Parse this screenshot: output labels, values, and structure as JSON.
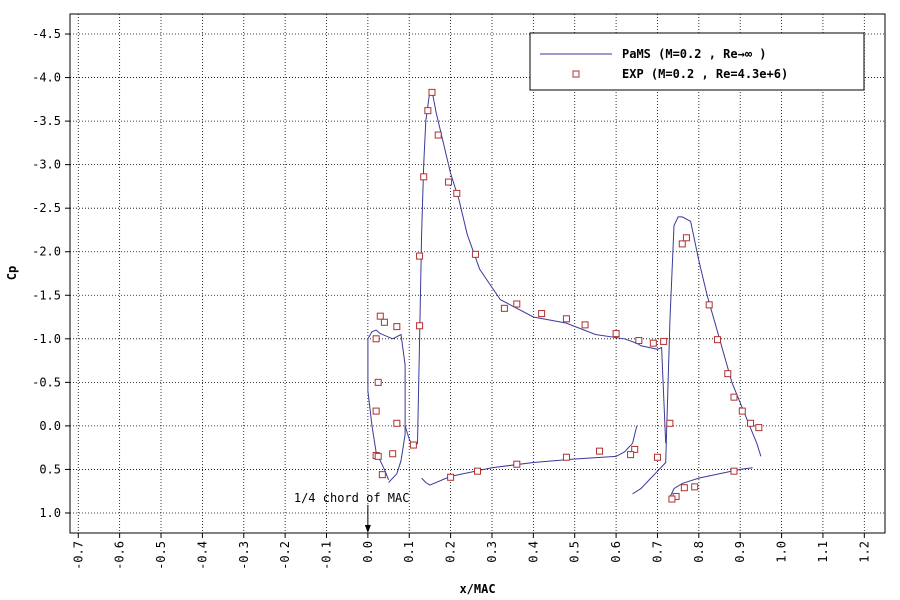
{
  "chart_data": {
    "type": "line",
    "title": "",
    "xlabel": "x/MAC",
    "ylabel": "Cp",
    "xlim": [
      -0.72,
      1.25
    ],
    "ylim": [
      1.23,
      -4.73
    ],
    "y_inverted": true,
    "grid": true,
    "legend_placement": "top-right",
    "x_ticks": [
      "-0.7",
      "-0.6",
      "-0.5",
      "-0.4",
      "-0.3",
      "-0.2",
      "-0.1",
      "0.0",
      "0.1",
      "0.2",
      "0.3",
      "0.4",
      "0.5",
      "0.6",
      "0.7",
      "0.8",
      "0.9",
      "1.0",
      "1.1",
      "1.2"
    ],
    "x_tick_values": [
      -0.7,
      -0.6,
      -0.5,
      -0.4,
      -0.3,
      -0.2,
      -0.1,
      0.0,
      0.1,
      0.2,
      0.3,
      0.4,
      0.5,
      0.6,
      0.7,
      0.8,
      0.9,
      1.0,
      1.1,
      1.2
    ],
    "y_ticks": [
      "-4.5",
      "-4.0",
      "-3.5",
      "-3.0",
      "-2.5",
      "-2.0",
      "-1.5",
      "-1.0",
      "-0.5",
      "0.0",
      "0.5",
      "1.0"
    ],
    "y_tick_values": [
      -4.5,
      -4.0,
      -3.5,
      -3.0,
      -2.5,
      -2.0,
      -1.5,
      -1.0,
      -0.5,
      0.0,
      0.5,
      1.0
    ],
    "colors": {
      "line": "#3a3a9a",
      "marker": "#b03030",
      "grid": "#000000"
    },
    "series": [
      {
        "name": "PaMS (M=0.2 , Re→∞    )",
        "kind": "line",
        "segments": [
          {
            "x": [
              0.05,
              0.04,
              0.02,
              0.01,
              0.0,
              0.0,
              0.0,
              0.01,
              0.02,
              0.03,
              0.06,
              0.08,
              0.09,
              0.09,
              0.09,
              0.08,
              0.07,
              0.05
            ],
            "y": [
              0.62,
              0.5,
              0.3,
              0.0,
              -0.4,
              -0.8,
              -1.0,
              -1.08,
              -1.1,
              -1.06,
              -1.0,
              -1.05,
              -0.7,
              -0.3,
              0.1,
              0.4,
              0.55,
              0.65
            ]
          },
          {
            "x": [
              0.09,
              0.1,
              0.11,
              0.12,
              0.125,
              0.13,
              0.135,
              0.14,
              0.15,
              0.155,
              0.165,
              0.18,
              0.2,
              0.22,
              0.24,
              0.27,
              0.32,
              0.4,
              0.48,
              0.55,
              0.62,
              0.65,
              0.66,
              0.68,
              0.7,
              0.71,
              0.72
            ],
            "y": [
              0.0,
              0.15,
              0.25,
              0.2,
              -1.0,
              -2.2,
              -3.0,
              -3.5,
              -3.85,
              -3.85,
              -3.6,
              -3.3,
              -2.9,
              -2.6,
              -2.2,
              -1.8,
              -1.45,
              -1.25,
              -1.18,
              -1.05,
              -1.0,
              -0.95,
              -0.92,
              -0.9,
              -0.88,
              -0.9,
              0.2
            ]
          },
          {
            "x": [
              0.13,
              0.14,
              0.15,
              0.2,
              0.3,
              0.4,
              0.5,
              0.6,
              0.62,
              0.64,
              0.65
            ],
            "y": [
              0.6,
              0.65,
              0.68,
              0.58,
              0.48,
              0.42,
              0.38,
              0.35,
              0.3,
              0.2,
              0.0
            ]
          },
          {
            "x": [
              0.64,
              0.66,
              0.68,
              0.7,
              0.72,
              0.73,
              0.74,
              0.75,
              0.76,
              0.78,
              0.8,
              0.82,
              0.85,
              0.88,
              0.91,
              0.94,
              0.95
            ],
            "y": [
              0.78,
              0.72,
              0.62,
              0.52,
              0.42,
              -1.2,
              -2.3,
              -2.4,
              -2.4,
              -2.35,
              -1.9,
              -1.5,
              -1.0,
              -0.5,
              -0.15,
              0.2,
              0.35
            ]
          },
          {
            "x": [
              0.73,
              0.74,
              0.76,
              0.8,
              0.85,
              0.9,
              0.93
            ],
            "y": [
              0.82,
              0.72,
              0.66,
              0.6,
              0.55,
              0.5,
              0.48
            ]
          }
        ]
      },
      {
        "name": "EXP  (M=0.2 , Re=4.3e+6)",
        "kind": "markers",
        "x": [
          0.02,
          0.03,
          0.04,
          0.07,
          0.025,
          0.02,
          0.02,
          0.07,
          0.06,
          0.025,
          0.035,
          0.11,
          0.125,
          0.125,
          0.135,
          0.145,
          0.155,
          0.17,
          0.195,
          0.215,
          0.26,
          0.33,
          0.36,
          0.42,
          0.48,
          0.525,
          0.6,
          0.655,
          0.69,
          0.715,
          0.73,
          0.76,
          0.77,
          0.825,
          0.845,
          0.87,
          0.885,
          0.905,
          0.925,
          0.945,
          0.885,
          0.79,
          0.765,
          0.745,
          0.735,
          0.7,
          0.645,
          0.635,
          0.56,
          0.48,
          0.36,
          0.265,
          0.2
        ],
        "y": [
          -1.0,
          -1.26,
          -1.19,
          -1.14,
          -0.5,
          -0.17,
          0.34,
          -0.03,
          0.32,
          0.35,
          0.56,
          0.22,
          -1.15,
          -1.95,
          -2.86,
          -3.62,
          -3.83,
          -3.34,
          -2.8,
          -2.67,
          -1.97,
          -1.35,
          -1.4,
          -1.29,
          -1.23,
          -1.16,
          -1.06,
          -0.98,
          -0.95,
          -0.97,
          -0.03,
          -2.09,
          -2.16,
          -1.39,
          -0.99,
          -0.6,
          -0.33,
          -0.17,
          -0.03,
          0.02,
          0.52,
          0.7,
          0.71,
          0.81,
          0.84,
          0.36,
          0.27,
          0.33,
          0.29,
          0.36,
          0.44,
          0.52,
          0.59
        ]
      }
    ],
    "annotations": [
      {
        "text": "1/4 chord of MAC",
        "x": 0.0,
        "y": 0.93,
        "arrow": true
      }
    ]
  }
}
